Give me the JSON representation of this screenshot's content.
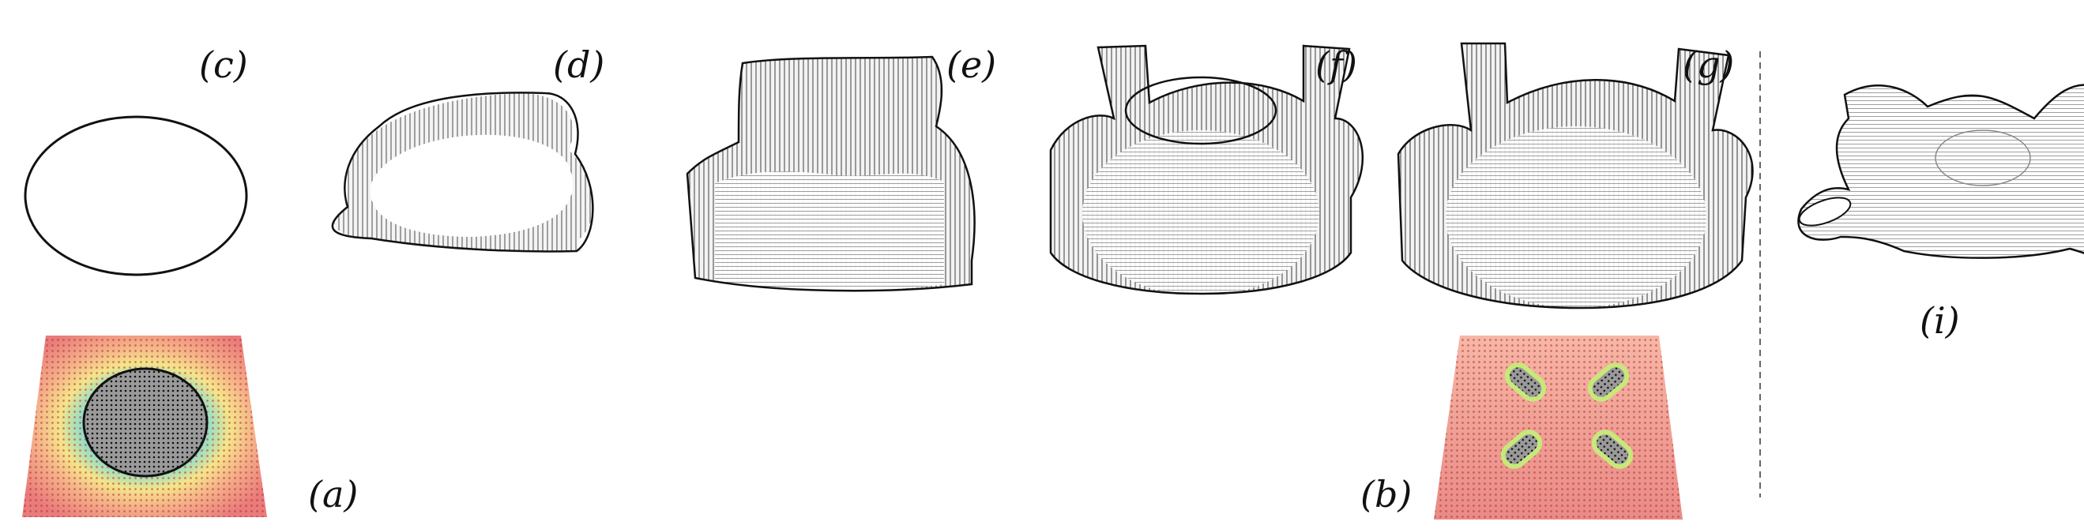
{
  "figure": {
    "labels": {
      "a": "(a)",
      "b": "(b)",
      "c": "(c)",
      "d": "(d)",
      "e": "(e)",
      "f": "(f)",
      "g": "(g)",
      "i": "(i)"
    },
    "colors": {
      "background": "#ffffff",
      "mesh": "#1a1a1a",
      "separator": "#666666",
      "field_hot": "#d9564f",
      "field_warm": "#f4e28a",
      "field_cool": "#8fd6c8",
      "field_cold": "#6db8e8"
    }
  }
}
